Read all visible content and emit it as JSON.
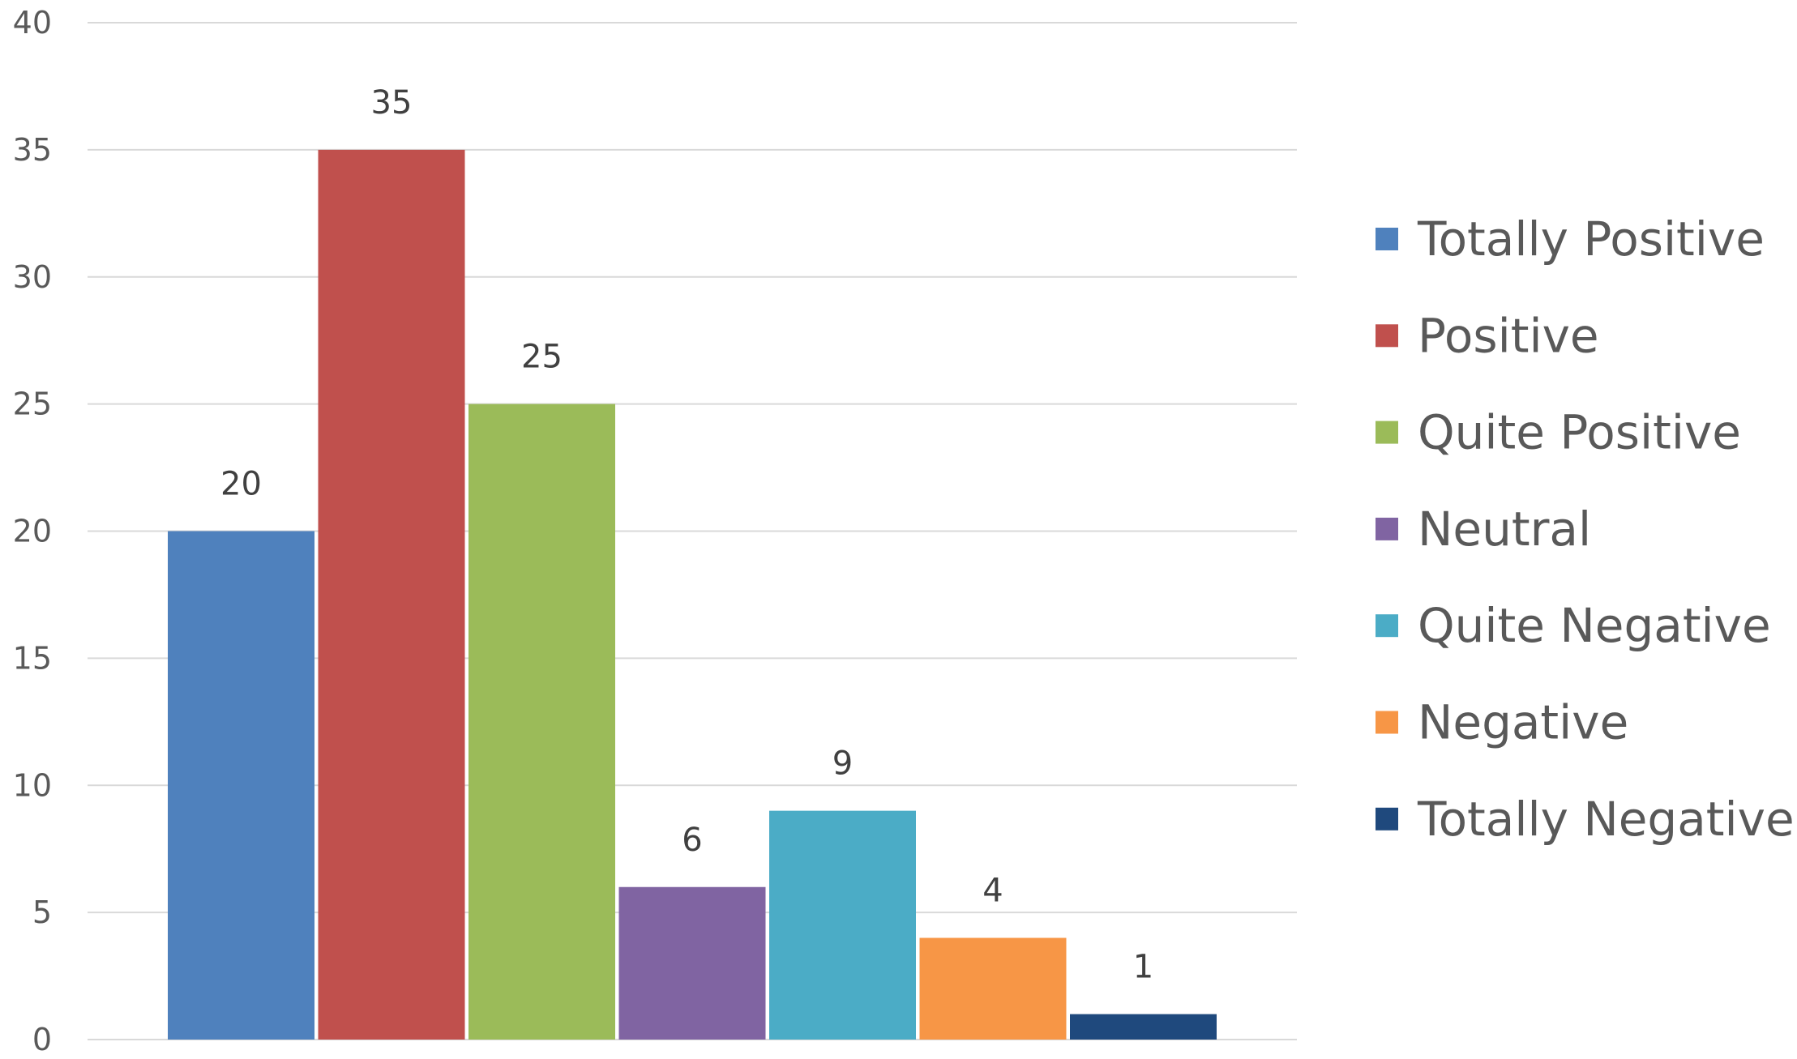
{
  "chart_data": {
    "type": "bar",
    "title": "",
    "xlabel": "",
    "ylabel": "",
    "categories": [
      "Totally Positive",
      "Positive",
      "Quite Positive",
      "Neutral",
      "Quite Negative",
      "Negative",
      "Totally Negative"
    ],
    "series": [
      {
        "values": [
          20,
          35,
          25,
          6,
          9,
          4,
          1
        ],
        "colors": [
          "#4f81bd",
          "#c0504d",
          "#9bbb59",
          "#8064a2",
          "#4bacc6",
          "#f79646",
          "#1f497d"
        ]
      }
    ],
    "data_labels": [
      "20",
      "35",
      "25",
      "6",
      "9",
      "4",
      "1"
    ],
    "ylim": [
      0,
      40
    ],
    "yticks": [
      0,
      5,
      10,
      15,
      20,
      25,
      30,
      35,
      40
    ],
    "ytick_labels": [
      "0",
      "5",
      "10",
      "15",
      "20",
      "25",
      "30",
      "35",
      "40"
    ],
    "grid": true,
    "legend": {
      "position": "right",
      "entries": [
        "Totally Positive",
        "Positive",
        "Quite Positive",
        "Neutral",
        "Quite Negative",
        "Negative",
        "Totally Negative"
      ]
    }
  }
}
